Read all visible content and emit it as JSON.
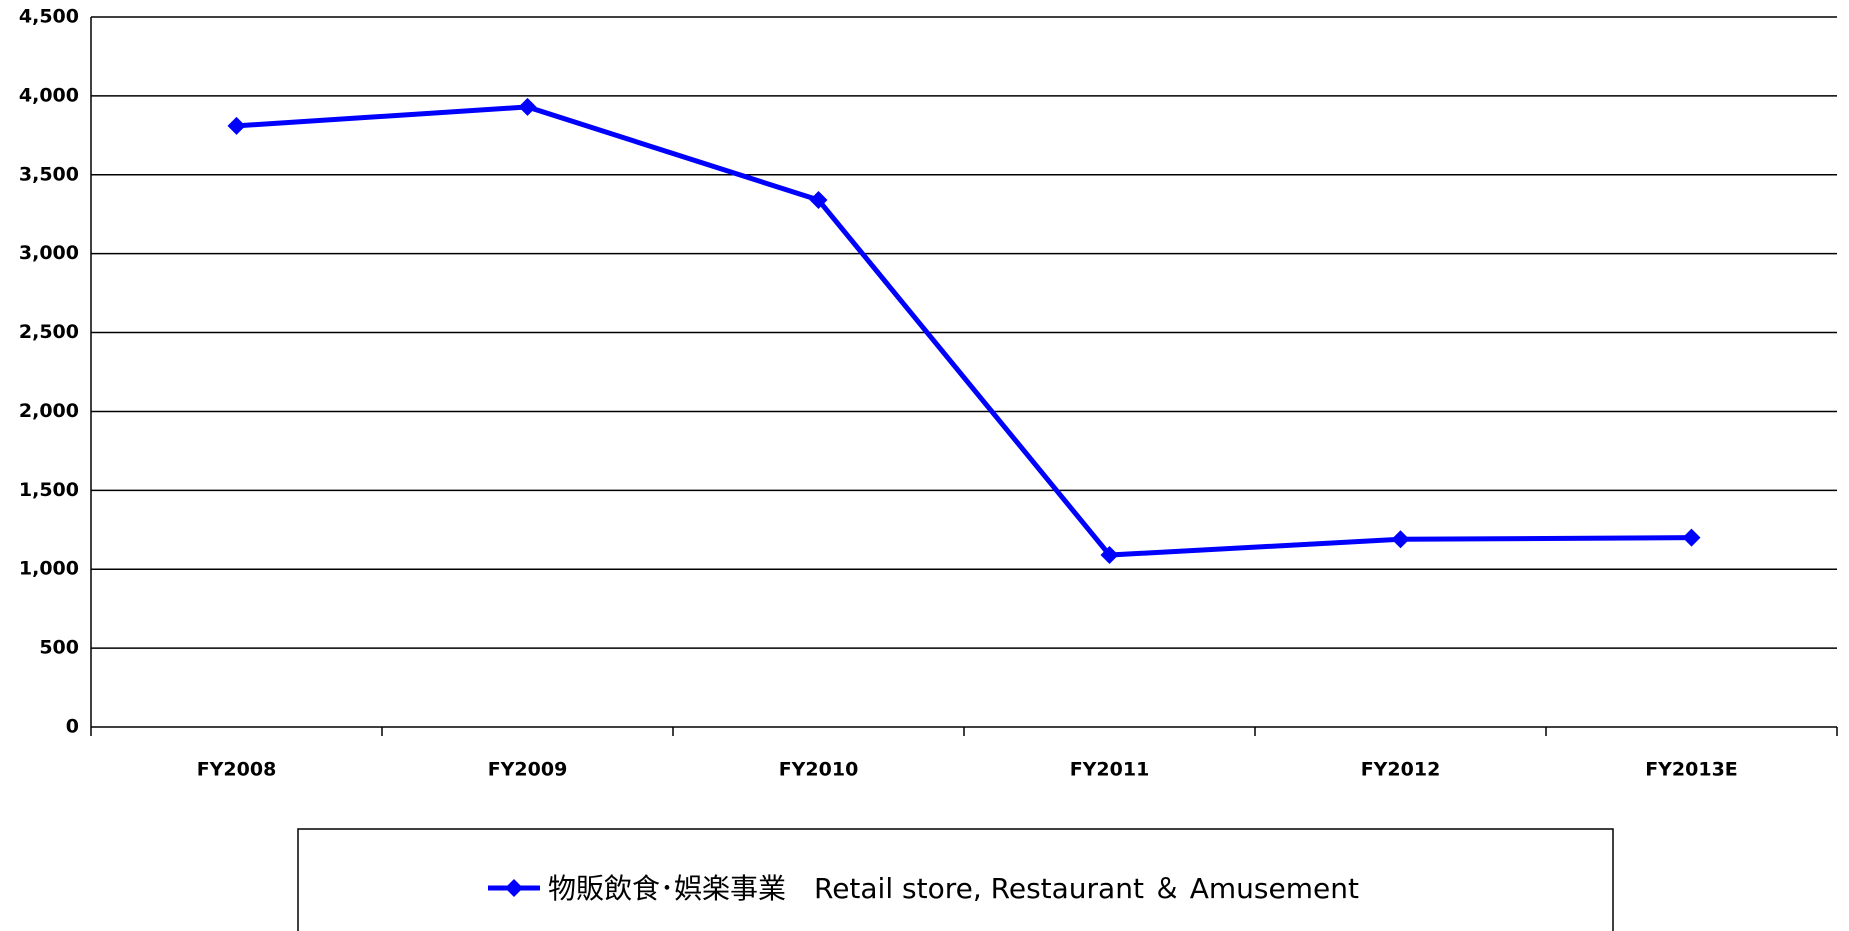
{
  "chart_data": {
    "type": "line",
    "categories": [
      "FY2008",
      "FY2009",
      "FY2010",
      "FY2011",
      "FY2012",
      "FY2013E"
    ],
    "series": [
      {
        "name": "物販飲食･娯楽事業　Retail store, Restaurant ＆ Amusement",
        "color": "#0000ff",
        "values": [
          3810,
          3930,
          3340,
          1090,
          1190,
          1200
        ]
      }
    ],
    "ylim": [
      0,
      4500
    ],
    "yticks": [
      0,
      {
        "value": 500,
        "label": "500"
      },
      {
        "value": 1000,
        "label": "1,000"
      },
      {
        "value": 1500,
        "label": "1,500"
      },
      {
        "value": 2000,
        "label": "2,000"
      },
      {
        "value": 2500,
        "label": "2,500"
      },
      {
        "value": 3000,
        "label": "3,000"
      },
      {
        "value": 3500,
        "label": "3,500"
      },
      {
        "value": 4000,
        "label": "4,000"
      },
      {
        "value": 4500,
        "label": "4,500"
      }
    ],
    "grid": true,
    "legend": "bottom"
  }
}
